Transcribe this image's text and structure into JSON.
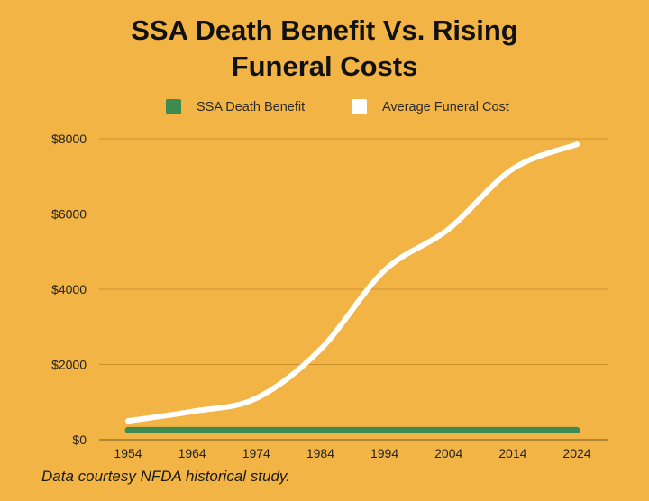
{
  "chart_data": {
    "type": "line",
    "title_lines": [
      "SSA Death Benefit Vs. Rising",
      "Funeral Costs"
    ],
    "xlabel": "",
    "ylabel": "",
    "x": [
      1954,
      1964,
      1974,
      1984,
      1994,
      2004,
      2014,
      2024
    ],
    "x_tick_labels": [
      "1954",
      "1964",
      "1974",
      "1984",
      "1994",
      "2004",
      "2014",
      "2024"
    ],
    "ylim": [
      0,
      8000
    ],
    "y_ticks": [
      0,
      2000,
      4000,
      6000,
      8000
    ],
    "y_tick_labels": [
      "$0",
      "$2000",
      "$4000",
      "$6000",
      "$8000"
    ],
    "grid": true,
    "legend_position": "top",
    "series": [
      {
        "name": "SSA Death Benefit",
        "color": "#3E8A50",
        "x": [
          1954,
          1964,
          1974,
          1984,
          1994,
          2004,
          2014,
          2024
        ],
        "values": [
          255,
          255,
          255,
          255,
          255,
          255,
          255,
          255
        ]
      },
      {
        "name": "Average Funeral Cost",
        "color": "#FFFFFF",
        "x": [
          1954,
          1964,
          1974,
          1984,
          1994,
          2004,
          2014,
          2024
        ],
        "values": [
          500,
          750,
          1100,
          2400,
          4500,
          5600,
          7200,
          7850
        ]
      }
    ]
  },
  "footnote": "Data courtesy NFDA historical study."
}
